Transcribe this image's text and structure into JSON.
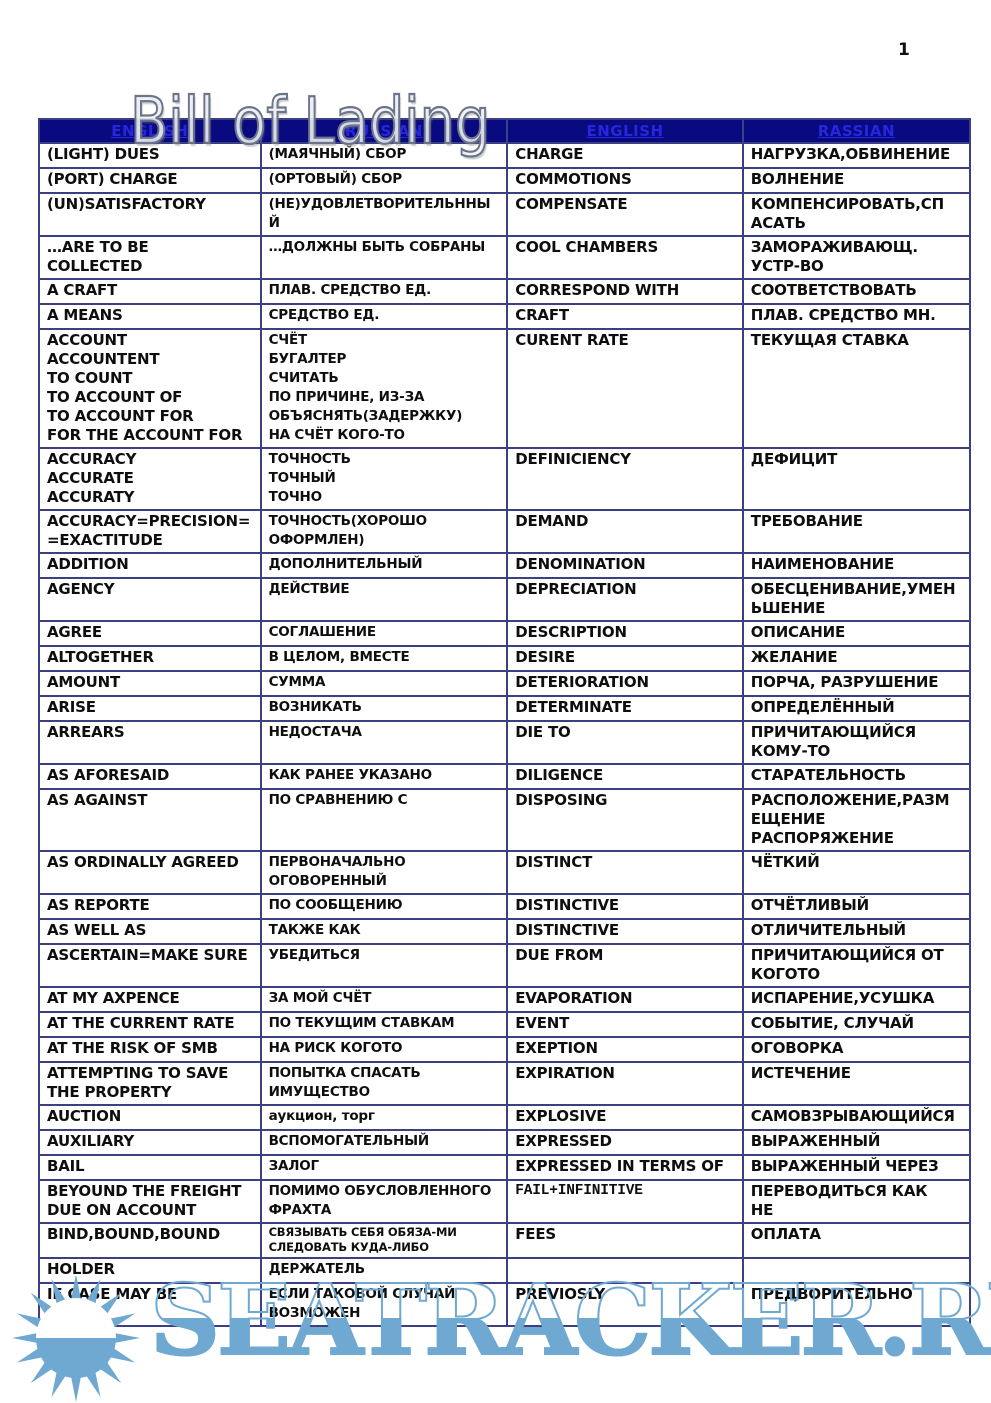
{
  "watermarks": {
    "title": "Bill of Lading",
    "site": "SEATRACKER.RU",
    "accent_color": "#6fa9d2"
  },
  "page": {
    "number": "1"
  },
  "table": {
    "header_bg": "#0a0a80",
    "header_text_color": "#2626e0",
    "border_color": "#3c4082",
    "headers": [
      "ENGLISH",
      "RUSSIAN",
      "ENGLISH",
      "RASSIAN"
    ],
    "rows": [
      {
        "en1": "(LIGHT) DUES",
        "ru1": "(МАЯЧНЫЙ) СБОР",
        "en2": "CHARGE",
        "ru2": "НАГРУЗКА,ОБВИНЕНИЕ"
      },
      {
        "en1": "(PORT) CHARGE",
        "ru1": "(ОРТОВЫЙ) СБОР",
        "en2": "COMMOTIONS",
        "ru2": "ВОЛНЕНИЕ"
      },
      {
        "en1": "(UN)SATISFACTORY",
        "ru1": "(НЕ)УДОВЛЕТВОРИТЕЛЬННЫЙ",
        "en2": "COMPENSATE",
        "ru2": "КОМПЕНСИРОВАТЬ,СП\nАСАТЬ"
      },
      {
        "en1": "…ARE TO BE\nCOLLECTED",
        "ru1": "…ДОЛЖНЫ БЫТЬ СОБРАНЫ",
        "en2": "COOL CHAMBERS",
        "ru2": "ЗАМОРАЖИВАЮЩ.\nУСТР-ВО"
      },
      {
        "en1": " A CRAFT",
        "ru1": "ПЛАВ. СРЕДСТВО ЕД.",
        "en2": "CORRESPOND WITH",
        "ru2": "СООТВЕТСТВОВАТЬ"
      },
      {
        "en1": "A MEANS",
        "ru1": "СРЕДСТВО ЕД.",
        "en2": "CRAFT",
        "ru2": "ПЛАВ. СРЕДСТВО МН."
      },
      {
        "en1": "ACCOUNT\nACCOUNTENT\nTO COUNT\nTO ACCOUNT OF\nTO ACCOUNT FOR\nFOR THE ACCOUNT FOR",
        "ru1": "СЧЁТ\nБУГАЛТЕР\nСЧИТАТЬ\nПО ПРИЧИНЕ, ИЗ-ЗА\nОБЪЯСНЯТЬ(ЗАДЕРЖКУ)\nНА СЧЁТ КОГО-ТО",
        "en2": "CURENT RATE",
        "ru2": "ТЕКУЩАЯ СТАВКА"
      },
      {
        "en1": "ACCURACY\nACCURATE\nACCURATY",
        "ru1": "ТОЧНОСТЬ\nТОЧНЫЙ\nТОЧНО",
        "en2": "DEFINICIENCY",
        "ru2": "ДЕФИЦИТ"
      },
      {
        "en1": "ACCURACY=PRECISION=\n=EXACTITUDE",
        "ru1": "ТОЧНОСТЬ(ХОРОШО\nОФОРМЛЕН)",
        "en2": "DEMAND",
        "ru2": "ТРЕБОВАНИЕ"
      },
      {
        "en1": "ADDITION",
        "ru1": "ДОПОЛНИТЕЛЬНЫЙ",
        "en2": "DENOMINATION",
        "ru2": "НАИМЕНОВАНИЕ"
      },
      {
        "en1": "AGENCY",
        "ru1": "ДЕЙСТВИЕ",
        "en2": "DEPRECIATION",
        "ru2": "ОБЕСЦЕНИВАНИЕ,УМЕН\nЬШЕНИЕ"
      },
      {
        "en1": "AGREE",
        "ru1": "СОГЛАШЕНИЕ",
        "en2": "DESCRIPTION",
        "ru2": "ОПИСАНИЕ"
      },
      {
        "en1": "ALTOGETHER",
        "ru1": "В ЦЕЛОМ, ВМЕСТЕ",
        "en2": "DESIRE",
        "ru2": "ЖЕЛАНИЕ"
      },
      {
        "en1": "AMOUNT",
        "ru1": "СУММА",
        "en2": "DETERIORATION",
        "ru2": "ПОРЧА, РАЗРУШЕНИЕ"
      },
      {
        "en1": "ARISE",
        "ru1": "ВОЗНИКАТЬ",
        "en2": "DETERMINATE",
        "ru2": "ОПРЕДЕЛЁННЫЙ"
      },
      {
        "en1": "ARREARS",
        "ru1": "НЕДОСТАЧА",
        "en2": "DIE TO",
        "ru2": "ПРИЧИТАЮЩИЙСЯ\nКОМУ-ТО"
      },
      {
        "en1": "AS AFORESAID",
        "ru1": "КАК РАНЕЕ УКАЗАНО",
        "en2": "DILIGENCE",
        "ru2": "СТАРАТЕЛЬНОСТЬ"
      },
      {
        "en1": "AS AGAINST",
        "ru1": "ПО СРАВНЕНИЮ С",
        "en2": "DISPOSING",
        "ru2": "РАСПОЛОЖЕНИЕ,РАЗМ\nЕЩЕНИЕ\nРАСПОРЯЖЕНИЕ"
      },
      {
        "en1": "AS ORDINALLY AGREED",
        "ru1": "ПЕРВОНАЧАЛЬНО\nОГОВОРЕННЫЙ",
        "en2": "DISTINCT",
        "ru2": "ЧЁТКИЙ"
      },
      {
        "en1": "AS REPORTE",
        "ru1": "ПО СООБЩЕНИЮ",
        "en2": "DISTINCTIVE",
        "ru2": "ОТЧЁТЛИВЫЙ"
      },
      {
        "en1": "AS WELL AS",
        "ru1": "ТАКЖЕ КАК",
        "en2": "DISTINCTIVE",
        "ru2": "ОТЛИЧИТЕЛЬНЫЙ"
      },
      {
        "en1": "ASCERTAIN=MAKE SURE",
        "ru1": "УБЕДИТЬСЯ",
        "en2": "DUE FROM",
        "ru2": "ПРИЧИТАЮЩИЙСЯ ОТ\nКОГОТО"
      },
      {
        "en1": "AT MY AXPENCE",
        "ru1": "ЗА МОЙ СЧЁТ",
        "en2": "EVAPORATION",
        "ru2": "ИСПАРЕНИЕ,УСУШКА"
      },
      {
        "en1": "AT THE CURRENT RATE",
        "ru1": "ПО ТЕКУЩИМ СТАВКАМ",
        "en2": "EVENT",
        "ru2": "СОБЫТИЕ, СЛУЧАЙ"
      },
      {
        "en1": "AT THE RISK OF SMB",
        "ru1": "НА РИСК КОГОТО",
        "en2": "EXEPTION",
        "ru2": "ОГОВОРКА"
      },
      {
        "en1": "ATTEMPTING TO SAVE\nTHE PROPERTY",
        "ru1": "ПОПЫТКА СПАСАТЬ\nИМУЩЕСТВО",
        "en2": "EXPIRATION",
        "ru2": "ИСТЕЧЕНИЕ"
      },
      {
        "en1": "AUCTION",
        "ru1": "аукцион, торг",
        "en2": "EXPLOSIVE",
        "ru2": "САМОВЗРЫВАЮЩИЙСЯ"
      },
      {
        "en1": "AUXILIARY",
        "ru1": "ВСПОМОГАТЕЛЬНЫЙ",
        "en2": "EXPRESSED",
        "ru2": "ВЫРАЖЕННЫЙ"
      },
      {
        "en1": "BAIL",
        "ru1": "ЗАЛОГ",
        "en2": "EXPRESSED IN TERMS OF",
        "ru2": "ВЫРАЖЕННЫЙ ЧЕРЕЗ"
      },
      {
        "en1": "BEYOUND THE FREIGHT\nDUE ON ACCOUNT",
        "ru1": "ПОМИМО ОБУСЛОВЛЕННОГО\nФРАХТА",
        "en2": "FAIL+INFINITIVE",
        "ru2": "ПЕРЕВОДИТЬСЯ КАК\nНЕ",
        "en2_mono": true
      },
      {
        "en1": "BIND,BOUND,BOUND",
        "ru1": "СВЯЗЫВАТЬ СЕБЯ ОБЯЗА-МИ\nСЛЕДОВАТЬ КУДА-ЛИБО",
        "en2": "FEES",
        "ru2": "ОПЛАТА",
        "ru1_small": true
      },
      {
        "en1": "HOLDER",
        "ru1": "ДЕРЖАТЕЛЬ",
        "en2": "",
        "ru2": ""
      },
      {
        "en1": "IF CASE MAY BE",
        "ru1": "ЕСЛИ ТАКОВОЙ СЛУЧАЙ\nВОЗМОЖЕН",
        "en2": "PREVIOSLY",
        "ru2": "ПРЕДВОРИТЕЛЬНО"
      }
    ]
  }
}
